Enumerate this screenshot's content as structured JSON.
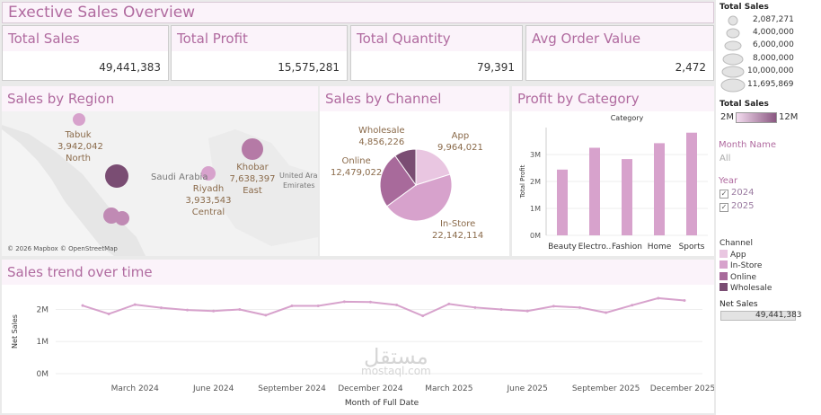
{
  "title": "Exective Sales Overview",
  "kpis": [
    {
      "label": "Total Sales",
      "value": "49,441,383"
    },
    {
      "label": "Total Profit",
      "value": "15,575,281"
    },
    {
      "label": "Total Quantity",
      "value": "79,391"
    },
    {
      "label": "Avg Order Value",
      "value": "2,472"
    }
  ],
  "region_panel": {
    "title": "Sales by Region",
    "regions": [
      {
        "name": "Tabuk",
        "value": "3,942,042",
        "sub": "North"
      },
      {
        "name": "Khobar",
        "value": "7,638,397",
        "sub": "East"
      },
      {
        "name": "Riyadh",
        "value": "3,933,543",
        "sub": "Central"
      }
    ],
    "map_labels": [
      "Saudi Arabia",
      "United Ara",
      "Emirates"
    ],
    "attribution": "© 2026 Mapbox © OpenStreetMap"
  },
  "channel_panel": {
    "title": "Sales by Channel",
    "labels": [
      {
        "name": "Wholesale",
        "value": "4,856,226"
      },
      {
        "name": "App",
        "value": "9,964,021"
      },
      {
        "name": "Online",
        "value": "12,479,022"
      },
      {
        "name": "In-Store",
        "value": "22,142,114"
      }
    ]
  },
  "category_panel": {
    "title": "Profit by Category"
  },
  "trend_panel": {
    "title": "Sales trend over time"
  },
  "sidebar": {
    "size_legend_title": "Total Sales",
    "size_values": [
      "2,087,271",
      "4,000,000",
      "6,000,000",
      "8,000,000",
      "10,000,000",
      "11,695,869"
    ],
    "color_legend_title": "Total Sales",
    "color_min": "2M",
    "color_max": "12M",
    "month_filter_label": "Month Name",
    "month_filter_value": "All",
    "year_filter_label": "Year",
    "years": [
      "2024",
      "2025"
    ],
    "channel_legend_title": "Channel",
    "channels": [
      "App",
      "In-Store",
      "Online",
      "Wholesale"
    ],
    "net_sales_label": "Net Sales",
    "net_sales_value": "49,441,383"
  },
  "colors": {
    "accent": "#b06a9f",
    "header_bg": "#fbf3fa",
    "app": "#e9c6e1",
    "in_store": "#d7a2cc",
    "online": "#a86a9b",
    "wholesale": "#7a4d73",
    "bar": "#d7a2cc"
  },
  "watermark": {
    "text": "مستقل",
    "sub": "mostaql.com"
  },
  "chart_data": [
    {
      "type": "pie",
      "title": "Sales by Channel",
      "categories": [
        "App",
        "In-Store",
        "Online",
        "Wholesale"
      ],
      "values": [
        9964021,
        22142114,
        12479022,
        4856226
      ]
    },
    {
      "type": "bar",
      "title": "Category",
      "categories": [
        "Beauty",
        "Electro..",
        "Fashion",
        "Home",
        "Sports"
      ],
      "values": [
        2440000,
        3250000,
        2830000,
        3420000,
        3810000
      ],
      "ylabel": "Total Profit",
      "ylim": [
        0,
        4000000
      ],
      "yticks": [
        "0M",
        "1M",
        "2M",
        "3M"
      ]
    },
    {
      "type": "line",
      "title": "Sales trend over time",
      "xlabel": "Month of Full Date",
      "ylabel": "Net Sales",
      "x": [
        "Jan 2024",
        "Feb 2024",
        "Mar 2024",
        "Apr 2024",
        "May 2024",
        "Jun 2024",
        "Jul 2024",
        "Aug 2024",
        "Sep 2024",
        "Oct 2024",
        "Nov 2024",
        "Dec 2024",
        "Jan 2025",
        "Feb 2025",
        "Mar 2025",
        "Apr 2025",
        "May 2025",
        "Jun 2025",
        "Jul 2025",
        "Aug 2025",
        "Sep 2025",
        "Oct 2025",
        "Nov 2025",
        "Dec 2025"
      ],
      "values": [
        2120000,
        1860000,
        2150000,
        2050000,
        1980000,
        1950000,
        2000000,
        1820000,
        2110000,
        2110000,
        2240000,
        2230000,
        2140000,
        1800000,
        2170000,
        2060000,
        2000000,
        1950000,
        2100000,
        2060000,
        1900000,
        2130000,
        2350000,
        2280000
      ],
      "xticks": [
        "March 2024",
        "June 2024",
        "September 2024",
        "December 2024",
        "March 2025",
        "June 2025",
        "September 2025",
        "December 2025"
      ],
      "yticks": [
        "0M",
        "1M",
        "2M"
      ],
      "ylim": [
        0,
        2600000
      ]
    }
  ]
}
